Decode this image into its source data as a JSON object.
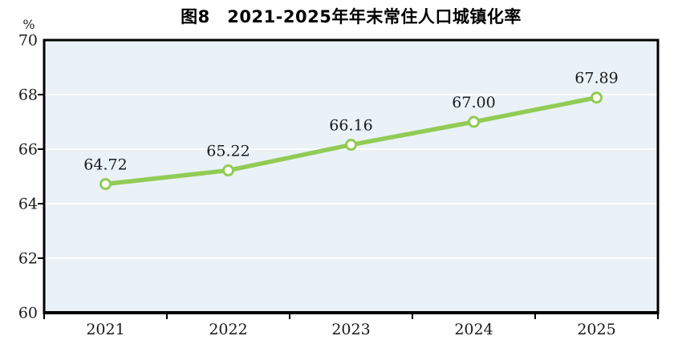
{
  "page": {
    "background": "#ffffff"
  },
  "chart_data": {
    "type": "line",
    "title": "图8　2021-2025年年末常住人口城镇化率",
    "unit_label": "%",
    "categories": [
      "2021",
      "2022",
      "2023",
      "2024",
      "2025"
    ],
    "values": [
      64.72,
      65.22,
      66.16,
      67.0,
      67.89
    ],
    "point_labels": [
      "64.72",
      "65.22",
      "66.16",
      "67.00",
      "67.89"
    ],
    "ylim": [
      60,
      70
    ],
    "ytick_interval": 2,
    "ytick_labels": [
      "70",
      "68",
      "66",
      "64",
      "62",
      "60"
    ],
    "grid": true,
    "legend": "none",
    "styles": {
      "line_color": "#92cb55",
      "marker_fill": "#ffffff",
      "marker_stroke": "#92cb55",
      "plot_bg": "#eaf2f8",
      "axis_color": "#000000",
      "gridline_color": "#ffffff",
      "label_color": "#1a1a1a",
      "title_color": "#000000"
    }
  }
}
